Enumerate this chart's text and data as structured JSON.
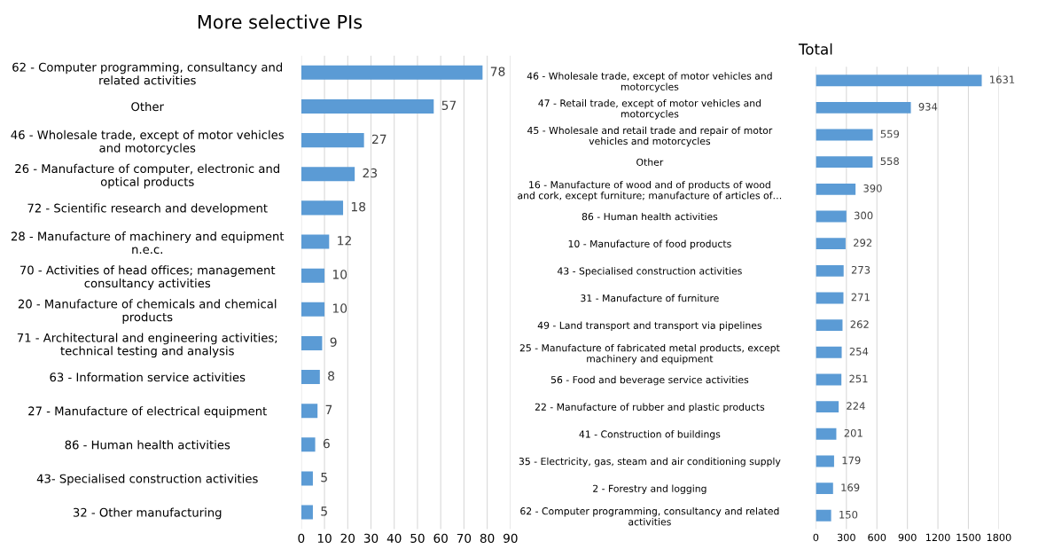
{
  "chart_data": [
    {
      "type": "bar",
      "orientation": "horizontal",
      "title": "More selective PIs",
      "categories": [
        "62 - Computer programming, consultancy and\nrelated activities",
        "Other",
        "46 - Wholesale trade, except of motor vehicles\nand motorcycles",
        "26 - Manufacture of computer, electronic and\noptical products",
        "72 - Scientific research and development",
        "28 - Manufacture of machinery and equipment\nn.e.c.",
        "70 - Activities of head offices; management\nconsultancy activities",
        "20 - Manufacture of chemicals and chemical\nproducts",
        "71 - Architectural and engineering activities;\ntechnical testing and analysis",
        "63 - Information service activities",
        "27 - Manufacture of electrical equipment",
        "86 - Human health activities",
        "43- Specialised construction activities",
        "32 - Other manufacturing"
      ],
      "values": [
        78,
        57,
        27,
        23,
        18,
        12,
        10,
        10,
        9,
        8,
        7,
        6,
        5,
        5
      ],
      "color": "#5b9bd5",
      "xlim": [
        0,
        90
      ],
      "xticks": [
        0,
        10,
        20,
        30,
        40,
        50,
        60,
        70,
        80,
        90
      ],
      "grid": "x",
      "data_labels": true
    },
    {
      "type": "bar",
      "orientation": "horizontal",
      "title": "Total",
      "categories": [
        "46 - Wholesale trade, except of motor vehicles and\nmotorcycles",
        "47 - Retail trade, except of motor vehicles and\nmotorcycles",
        "45 - Wholesale and retail trade and repair of motor\nvehicles and motorcycles",
        "Other",
        "16 - Manufacture of wood and of products of wood\nand cork, except furniture; manufacture of articles of…",
        "86 - Human health activities",
        "10 - Manufacture of food products",
        "43 - Specialised construction activities",
        "31 - Manufacture of furniture",
        "49 - Land transport and transport via pipelines",
        "25 - Manufacture of fabricated metal products, except\nmachinery and equipment",
        "56 - Food and beverage service activities",
        "22 - Manufacture of rubber and plastic products",
        "41 - Construction of buildings",
        "35 - Electricity, gas, steam and air conditioning supply",
        "2 - Forestry and logging",
        "62 - Computer programming, consultancy and related\nactivities"
      ],
      "values": [
        1631,
        934,
        559,
        558,
        390,
        300,
        292,
        273,
        271,
        262,
        254,
        251,
        224,
        201,
        179,
        169,
        150
      ],
      "color": "#5b9bd5",
      "xlim": [
        0,
        1800
      ],
      "xticks": [
        0,
        300,
        600,
        900,
        1200,
        1500,
        1800
      ],
      "grid": "x",
      "data_labels": true
    }
  ]
}
